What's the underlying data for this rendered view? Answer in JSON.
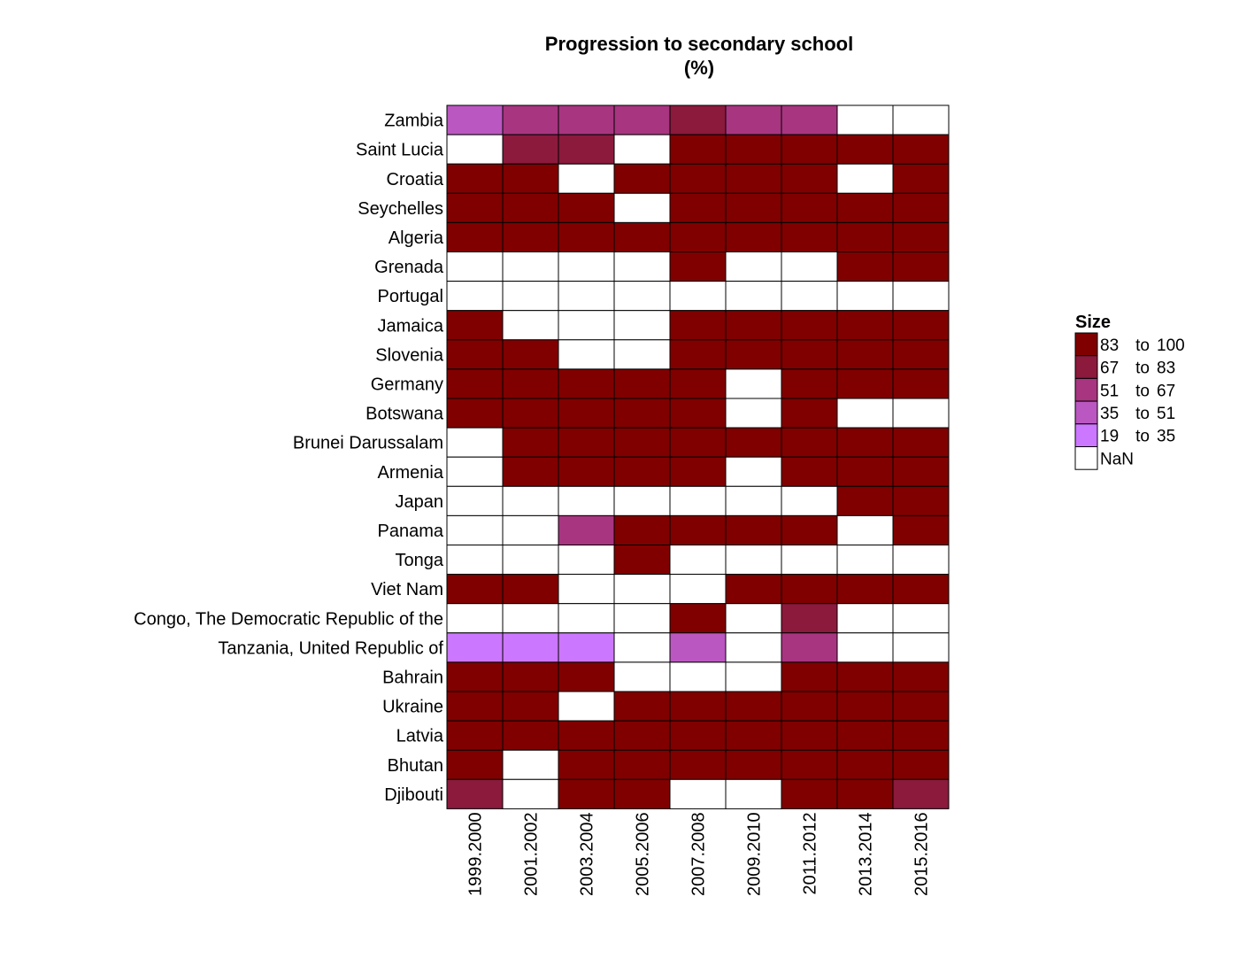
{
  "chart_data": {
    "type": "heatmap",
    "title": "Progression to secondary school",
    "subtitle": "(%)",
    "columns": [
      "1999.2000",
      "2001.2002",
      "2003.2004",
      "2005.2006",
      "2007.2008",
      "2009.2010",
      "2011.2012",
      "2013.2014",
      "2015.2016"
    ],
    "rows": [
      "Zambia",
      "Saint Lucia",
      "Croatia",
      "Seychelles",
      "Algeria",
      "Grenada",
      "Portugal",
      "Jamaica",
      "Slovenia",
      "Germany",
      "Botswana",
      "Brunei Darussalam",
      "Armenia",
      "Japan",
      "Panama",
      "Tonga",
      "Viet Nam",
      "Congo, The Democratic Republic of the",
      "Tanzania, United Republic of",
      "Bahrain",
      "Ukraine",
      "Latvia",
      "Bhutan",
      "Djibouti"
    ],
    "values": [
      [
        43,
        60,
        62,
        58,
        75,
        60,
        55,
        null,
        null
      ],
      [
        null,
        72,
        74,
        null,
        92,
        92,
        92,
        92,
        92
      ],
      [
        92,
        92,
        null,
        92,
        92,
        92,
        92,
        null,
        92
      ],
      [
        92,
        92,
        92,
        null,
        92,
        92,
        92,
        92,
        92
      ],
      [
        92,
        92,
        92,
        92,
        92,
        92,
        92,
        92,
        92
      ],
      [
        null,
        null,
        null,
        null,
        92,
        null,
        null,
        92,
        92
      ],
      [
        null,
        null,
        null,
        null,
        null,
        null,
        null,
        null,
        null
      ],
      [
        92,
        null,
        null,
        null,
        92,
        92,
        92,
        92,
        92
      ],
      [
        92,
        92,
        null,
        null,
        92,
        92,
        92,
        92,
        92
      ],
      [
        92,
        92,
        92,
        92,
        92,
        null,
        92,
        92,
        92
      ],
      [
        92,
        92,
        92,
        92,
        92,
        null,
        92,
        null,
        null
      ],
      [
        null,
        92,
        92,
        92,
        92,
        92,
        92,
        92,
        92
      ],
      [
        null,
        92,
        92,
        92,
        92,
        null,
        92,
        92,
        92
      ],
      [
        null,
        null,
        null,
        null,
        null,
        null,
        null,
        92,
        92
      ],
      [
        null,
        null,
        60,
        92,
        92,
        92,
        92,
        null,
        92
      ],
      [
        null,
        null,
        null,
        92,
        null,
        null,
        null,
        null,
        null
      ],
      [
        92,
        92,
        null,
        null,
        null,
        92,
        92,
        92,
        92
      ],
      [
        null,
        null,
        null,
        null,
        92,
        null,
        72,
        null,
        null
      ],
      [
        27,
        27,
        27,
        null,
        45,
        null,
        58,
        null,
        null
      ],
      [
        92,
        92,
        92,
        null,
        null,
        null,
        92,
        92,
        92
      ],
      [
        92,
        92,
        null,
        92,
        92,
        92,
        92,
        92,
        92
      ],
      [
        92,
        92,
        92,
        92,
        92,
        92,
        92,
        92,
        92
      ],
      [
        92,
        null,
        92,
        92,
        92,
        92,
        92,
        92,
        92
      ],
      [
        72,
        null,
        92,
        92,
        null,
        null,
        92,
        92,
        72
      ]
    ],
    "legend": {
      "title": "Size",
      "placement": "right",
      "bins": [
        {
          "from": "83",
          "to": "100",
          "min": 83,
          "max": 100,
          "color": "#800000"
        },
        {
          "from": "67",
          "to": "83",
          "min": 67,
          "max": 83,
          "color": "#8b1a3c"
        },
        {
          "from": "51",
          "to": "67",
          "min": 51,
          "max": 67,
          "color": "#a83580"
        },
        {
          "from": "35",
          "to": "51",
          "min": 35,
          "max": 51,
          "color": "#bb57c0"
        },
        {
          "from": "19",
          "to": "35",
          "min": 19,
          "max": 35,
          "color": "#cc77ff"
        }
      ],
      "to_word": "to",
      "nan_label": "NaN",
      "nan_color": "#ffffff"
    }
  }
}
